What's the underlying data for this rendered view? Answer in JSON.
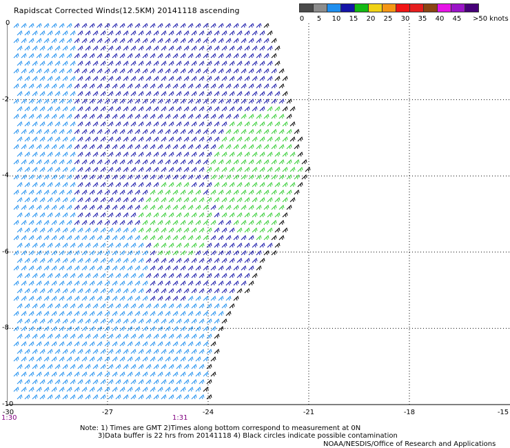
{
  "title": "Rapidscat Corrected Winds(12.5KM) 20141118 ascending",
  "legend": {
    "unit": ">50 knots",
    "labels": [
      "0",
      "5",
      "10",
      "15",
      "20",
      "25",
      "30",
      "35",
      "40",
      "45"
    ],
    "colors": [
      "#4a4a4a",
      "#8c8c8c",
      "#1f8fef",
      "#1414a8",
      "#14b914",
      "#f0d214",
      "#f59614",
      "#f01414",
      "#e61e1e",
      "#8b4513",
      "#e614e6",
      "#9b14c8",
      "#460078"
    ]
  },
  "axes": {
    "y_ticks": [
      "0",
      "-2",
      "-4",
      "-6",
      "-8",
      "-10"
    ],
    "x_ticks": [
      "-30",
      "-27",
      "-24",
      "-21",
      "-18",
      "-15"
    ]
  },
  "times": {
    "left": "1:30",
    "middle": "1:31"
  },
  "notes": {
    "line1": "Note: 1) Times are GMT 2)Times along bottom correspond to measurement at 0N",
    "line2": "3)Data buffer is 22 hrs from 20141118 4) Black circles indicate possible contamination"
  },
  "credit": "NOAA/NESDIS/Office of Research and Applications",
  "map_data": {
    "lon_range": [
      -30,
      -15
    ],
    "lat_range": [
      -10,
      0
    ],
    "swath_edge": [
      [
        -22.1,
        0
      ],
      [
        -21.6,
        -2
      ],
      [
        -21.0,
        -4
      ],
      [
        -22.0,
        -6
      ],
      [
        -23.6,
        -8
      ],
      [
        -24.0,
        -10
      ]
    ],
    "wind_regions": [
      {
        "speed_kt": 20,
        "color": "green",
        "center": [
          -22.2,
          -4.0
        ]
      },
      {
        "speed_kt": 20,
        "color": "green",
        "center": [
          -25.0,
          -5.2
        ]
      },
      {
        "speed_kt": 10,
        "color": "light-blue",
        "area": "west"
      },
      {
        "speed_kt": 15,
        "color": "dark-blue",
        "area": "center"
      }
    ]
  }
}
